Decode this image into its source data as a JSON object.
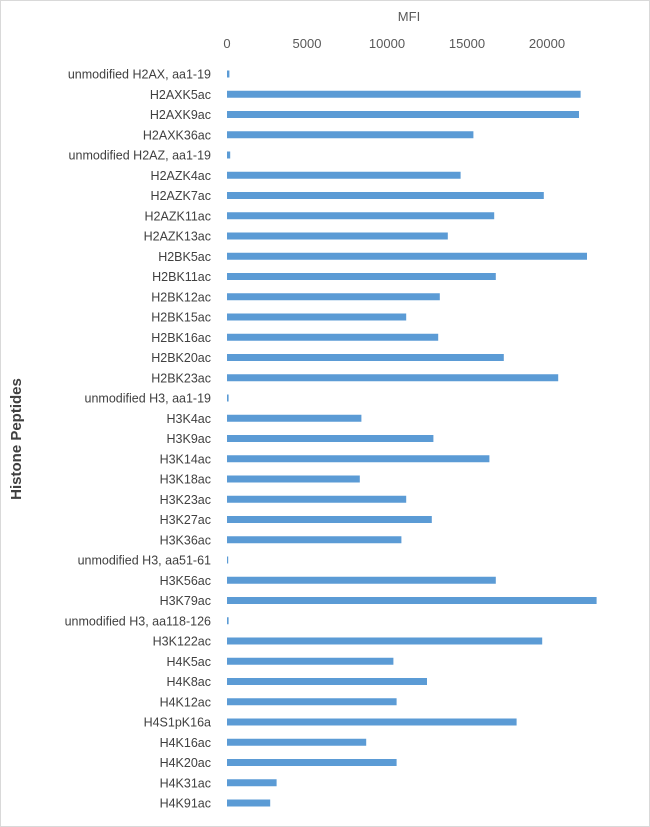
{
  "chart_data": {
    "type": "bar",
    "orientation": "horizontal",
    "xlabel": "MFI",
    "ylabel": "Histone Peptides",
    "xlim": [
      0,
      23500
    ],
    "xticks": [
      0,
      5000,
      10000,
      15000,
      20000
    ],
    "grid": false,
    "bar_color": "#5b9bd5",
    "categories": [
      "unmodified H2AX, aa1-19",
      "H2AXK5ac",
      "H2AXK9ac",
      "H2AXK36ac",
      "unmodified H2AZ, aa1-19",
      "H2AZK4ac",
      "H2AZK7ac",
      "H2AZK11ac",
      "H2AZK13ac",
      "H2BK5ac",
      "H2BK11ac",
      "H2BK12ac",
      "H2BK15ac",
      "H2BK16ac",
      "H2BK20ac",
      "H2BK23ac",
      "unmodified H3, aa1-19",
      "H3K4ac",
      "H3K9ac",
      "H3K14ac",
      "H3K18ac",
      "H3K23ac",
      "H3K27ac",
      "H3K36ac",
      "unmodified H3, aa51-61",
      "H3K56ac",
      "H3K79ac",
      "unmodified H3, aa118-126",
      "H3K122ac",
      "H4K5ac",
      "H4K8ac",
      "H4K12ac",
      "H4S1pK16a",
      "H4K16ac",
      "H4K20ac",
      "H4K31ac",
      "H4K91ac"
    ],
    "values": [
      150,
      22100,
      22000,
      15400,
      200,
      14600,
      19800,
      16700,
      13800,
      22500,
      16800,
      13300,
      11200,
      13200,
      17300,
      20700,
      100,
      8400,
      12900,
      16400,
      8300,
      11200,
      12800,
      10900,
      50,
      16800,
      23100,
      100,
      19700,
      10400,
      12500,
      10600,
      18100,
      8700,
      10600,
      3100,
      2700
    ]
  }
}
